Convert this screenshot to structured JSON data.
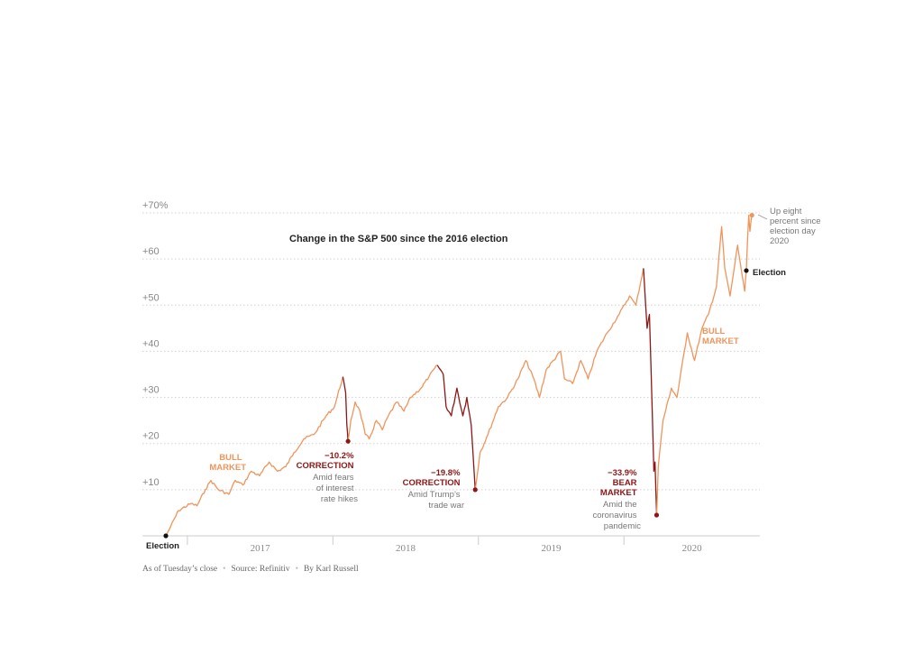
{
  "colors": {
    "bull": "#f0945a",
    "correction": "#8e1616",
    "text": "#222222",
    "muted": "#888888",
    "grid": "#d0d0d0"
  },
  "chart_data": {
    "type": "line",
    "title": "Change in the S&P 500 since the 2016 election",
    "x_start": "2016-11-08",
    "x_end": "2020-11-03",
    "ylim": [
      0,
      70
    ],
    "y_ticks": [
      {
        "value": 10,
        "label": "+10"
      },
      {
        "value": 20,
        "label": "+20"
      },
      {
        "value": 30,
        "label": "+30"
      },
      {
        "value": 40,
        "label": "+40"
      },
      {
        "value": 50,
        "label": "+50"
      },
      {
        "value": 60,
        "label": "+60"
      },
      {
        "value": 70,
        "label": "+70%"
      }
    ],
    "x_ticks": [
      {
        "value": "2017-01-01",
        "label": "2017"
      },
      {
        "value": "2018-01-01",
        "label": "2018"
      },
      {
        "value": "2019-01-01",
        "label": "2019"
      },
      {
        "value": "2020-01-01",
        "label": "2020"
      }
    ],
    "grid": "horizontal-dotted",
    "series": [
      {
        "style": "bull",
        "points": [
          [
            "2016-11-08",
            0
          ],
          [
            "2016-11-20",
            2
          ],
          [
            "2016-12-10",
            5.5
          ],
          [
            "2017-01-10",
            7
          ],
          [
            "2017-01-25",
            6.5
          ],
          [
            "2017-02-15",
            10
          ],
          [
            "2017-03-01",
            12
          ],
          [
            "2017-03-20",
            10
          ],
          [
            "2017-04-15",
            9
          ],
          [
            "2017-05-01",
            12
          ],
          [
            "2017-05-20",
            11
          ],
          [
            "2017-06-10",
            14
          ],
          [
            "2017-07-01",
            13
          ],
          [
            "2017-07-25",
            16
          ],
          [
            "2017-08-15",
            14
          ],
          [
            "2017-09-05",
            15
          ],
          [
            "2017-09-25",
            18
          ],
          [
            "2017-10-20",
            21
          ],
          [
            "2017-11-15",
            22
          ],
          [
            "2017-12-15",
            26
          ],
          [
            "2018-01-05",
            28
          ],
          [
            "2018-01-26",
            34.5
          ]
        ]
      },
      {
        "style": "correction",
        "points": [
          [
            "2018-01-26",
            34.5
          ],
          [
            "2018-02-02",
            31
          ],
          [
            "2018-02-05",
            24
          ],
          [
            "2018-02-08",
            20.5
          ]
        ]
      },
      {
        "style": "bull",
        "points": [
          [
            "2018-02-08",
            20.5
          ],
          [
            "2018-02-15",
            25
          ],
          [
            "2018-02-26",
            29
          ],
          [
            "2018-03-10",
            27
          ],
          [
            "2018-03-23",
            22
          ],
          [
            "2018-04-02",
            21
          ],
          [
            "2018-04-20",
            25
          ],
          [
            "2018-05-05",
            23
          ],
          [
            "2018-05-20",
            26
          ],
          [
            "2018-06-10",
            29
          ],
          [
            "2018-06-28",
            27
          ],
          [
            "2018-07-15",
            30
          ],
          [
            "2018-08-10",
            32
          ],
          [
            "2018-08-30",
            34.5
          ],
          [
            "2018-09-20",
            37
          ]
        ]
      },
      {
        "style": "correction",
        "points": [
          [
            "2018-09-20",
            37
          ],
          [
            "2018-10-05",
            35
          ],
          [
            "2018-10-12",
            28
          ],
          [
            "2018-10-25",
            26
          ],
          [
            "2018-11-08",
            32
          ],
          [
            "2018-11-23",
            26
          ],
          [
            "2018-12-03",
            30
          ],
          [
            "2018-12-14",
            24
          ],
          [
            "2018-12-24",
            10
          ]
        ]
      },
      {
        "style": "bull",
        "points": [
          [
            "2018-12-24",
            10
          ],
          [
            "2019-01-05",
            18
          ],
          [
            "2019-01-25",
            22
          ],
          [
            "2019-02-20",
            28
          ],
          [
            "2019-03-15",
            30
          ],
          [
            "2019-04-10",
            34
          ],
          [
            "2019-04-30",
            38
          ],
          [
            "2019-05-20",
            34
          ],
          [
            "2019-06-03",
            30
          ],
          [
            "2019-06-20",
            36
          ],
          [
            "2019-07-26",
            40
          ],
          [
            "2019-08-05",
            34
          ],
          [
            "2019-08-25",
            33
          ],
          [
            "2019-09-15",
            38
          ],
          [
            "2019-10-03",
            34
          ],
          [
            "2019-10-25",
            40
          ],
          [
            "2019-11-20",
            44
          ],
          [
            "2019-12-20",
            48
          ],
          [
            "2020-01-15",
            52
          ],
          [
            "2020-01-31",
            50
          ],
          [
            "2020-02-19",
            58
          ]
        ]
      },
      {
        "style": "correction",
        "points": [
          [
            "2020-02-19",
            58
          ],
          [
            "2020-02-28",
            45
          ],
          [
            "2020-03-05",
            48
          ],
          [
            "2020-03-12",
            27
          ],
          [
            "2020-03-16",
            14
          ],
          [
            "2020-03-19",
            16
          ],
          [
            "2020-03-23",
            4.5
          ]
        ]
      },
      {
        "style": "bull",
        "points": [
          [
            "2020-03-23",
            4.5
          ],
          [
            "2020-03-27",
            15
          ],
          [
            "2020-04-08",
            25
          ],
          [
            "2020-04-29",
            32
          ],
          [
            "2020-05-13",
            30
          ],
          [
            "2020-06-08",
            44
          ],
          [
            "2020-06-26",
            38
          ],
          [
            "2020-07-15",
            45
          ],
          [
            "2020-07-31",
            48
          ],
          [
            "2020-08-20",
            54
          ],
          [
            "2020-09-02",
            67
          ],
          [
            "2020-09-10",
            58
          ],
          [
            "2020-09-23",
            52
          ],
          [
            "2020-10-02",
            57
          ],
          [
            "2020-10-12",
            63
          ],
          [
            "2020-10-19",
            59
          ],
          [
            "2020-10-30",
            53
          ],
          [
            "2020-11-03",
            57.5
          ],
          [
            "2020-11-06",
            64
          ],
          [
            "2020-11-09",
            69.5
          ],
          [
            "2020-11-12",
            66
          ],
          [
            "2020-11-17",
            69.5
          ]
        ]
      }
    ],
    "markers": [
      {
        "date": "2016-11-08",
        "value": 0,
        "style": "black"
      },
      {
        "date": "2018-02-08",
        "value": 20.5,
        "style": "correction"
      },
      {
        "date": "2018-12-24",
        "value": 10,
        "style": "correction"
      },
      {
        "date": "2020-03-23",
        "value": 4.5,
        "style": "correction"
      },
      {
        "date": "2020-11-03",
        "value": 57.5,
        "style": "black"
      },
      {
        "date": "2020-11-17",
        "value": 69.5,
        "style": "bull"
      }
    ],
    "annotations": {
      "election_start": "Election",
      "election_end": "Election",
      "bull1": [
        "BULL",
        "MARKET"
      ],
      "bull2": [
        "BULL",
        "MARKET"
      ],
      "correction1": {
        "pct": "−10.2%",
        "label": "CORRECTION",
        "note": [
          "Amid fears",
          "of interest",
          "rate hikes"
        ]
      },
      "correction2": {
        "pct": "−19.8%",
        "label": "CORRECTION",
        "note": [
          "Amid Trump’s",
          "trade war"
        ]
      },
      "bear": {
        "pct": "−33.9%",
        "label": [
          "BEAR",
          "MARKET"
        ],
        "note": [
          "Amid the",
          "coronavirus",
          "pandemic"
        ]
      },
      "end_note": [
        "Up eight",
        "percent since",
        "election day",
        "2020"
      ]
    }
  },
  "footer": {
    "as_of": "As of Tuesday’s close",
    "source": "Source: Refinitiv",
    "byline": "By Karl Russell",
    "sep": "•"
  }
}
